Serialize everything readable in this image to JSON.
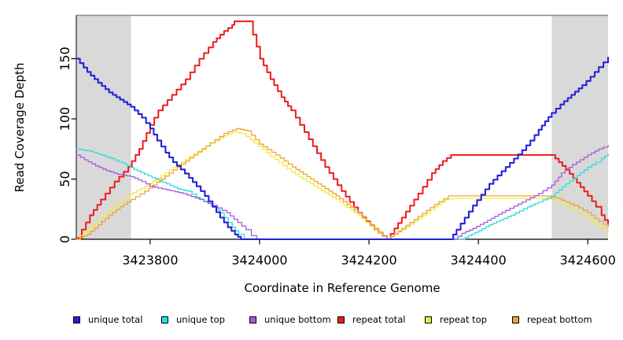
{
  "figure": {
    "xlabel": "Coordinate in Reference Genome",
    "ylabel": "Read Coverage Depth"
  },
  "chart_data": {
    "type": "line",
    "title": "",
    "xlabel": "Coordinate in Reference Genome",
    "ylabel": "Read Coverage Depth",
    "xlim": [
      3423665,
      3424637
    ],
    "ylim": [
      0,
      186
    ],
    "x_ticks": [
      3423800,
      3424000,
      3424200,
      3424400,
      3424600
    ],
    "y_ticks": [
      0,
      50,
      100,
      150
    ],
    "grid": false,
    "legend_position": "bottom",
    "background_color": "#ffffff",
    "shaded_region_color": "#d9d9d9",
    "top_border_color": "#8a8a8a",
    "shaded_regions": [
      {
        "x0": 3423665,
        "x1": 3423765
      },
      {
        "x0": 3424534,
        "x1": 3424637
      }
    ],
    "series": [
      {
        "name": "unique total",
        "color": "#2323d6",
        "line_width": 2.1,
        "points": [
          [
            3423665,
            150
          ],
          [
            3423685,
            139
          ],
          [
            3423705,
            130
          ],
          [
            3423725,
            122
          ],
          [
            3423745,
            116
          ],
          [
            3423765,
            110
          ],
          [
            3423785,
            101
          ],
          [
            3423800,
            92
          ],
          [
            3423813,
            82
          ],
          [
            3423828,
            72
          ],
          [
            3423842,
            64
          ],
          [
            3423856,
            58
          ],
          [
            3423871,
            51
          ],
          [
            3423885,
            44
          ],
          [
            3423900,
            36
          ],
          [
            3423914,
            27
          ],
          [
            3423928,
            18
          ],
          [
            3423942,
            10
          ],
          [
            3423955,
            4
          ],
          [
            3423966,
            0
          ],
          [
            3424348,
            0
          ],
          [
            3424360,
            8
          ],
          [
            3424375,
            18
          ],
          [
            3424390,
            28
          ],
          [
            3424405,
            37
          ],
          [
            3424420,
            46
          ],
          [
            3424435,
            53
          ],
          [
            3424450,
            60
          ],
          [
            3424465,
            67
          ],
          [
            3424480,
            74
          ],
          [
            3424495,
            82
          ],
          [
            3424510,
            91
          ],
          [
            3424522,
            98
          ],
          [
            3424534,
            105
          ],
          [
            3424550,
            112
          ],
          [
            3424570,
            120
          ],
          [
            3424590,
            128
          ],
          [
            3424605,
            135
          ],
          [
            3424620,
            143
          ],
          [
            3424637,
            151
          ]
        ]
      },
      {
        "name": "unique top",
        "color": "#2adfdf",
        "line_width": 1.3,
        "points": [
          [
            3423665,
            75
          ],
          [
            3423690,
            73
          ],
          [
            3423710,
            70
          ],
          [
            3423730,
            67
          ],
          [
            3423750,
            63
          ],
          [
            3423770,
            58
          ],
          [
            3423790,
            54
          ],
          [
            3423810,
            50
          ],
          [
            3423830,
            46
          ],
          [
            3423850,
            42
          ],
          [
            3423868,
            40
          ],
          [
            3423885,
            35
          ],
          [
            3423905,
            30
          ],
          [
            3423928,
            22
          ],
          [
            3423950,
            10
          ],
          [
            3423962,
            4
          ],
          [
            3423972,
            0
          ],
          [
            3424370,
            0
          ],
          [
            3424382,
            3
          ],
          [
            3424400,
            7
          ],
          [
            3424420,
            12
          ],
          [
            3424440,
            16
          ],
          [
            3424460,
            20
          ],
          [
            3424490,
            27
          ],
          [
            3424510,
            31
          ],
          [
            3424534,
            36
          ],
          [
            3424560,
            46
          ],
          [
            3424580,
            53
          ],
          [
            3424600,
            60
          ],
          [
            3424615,
            64
          ],
          [
            3424625,
            67
          ],
          [
            3424637,
            71
          ]
        ]
      },
      {
        "name": "unique bottom",
        "color": "#a55ae0",
        "line_width": 1.3,
        "points": [
          [
            3423665,
            70
          ],
          [
            3423680,
            66
          ],
          [
            3423700,
            61
          ],
          [
            3423720,
            57
          ],
          [
            3423740,
            54
          ],
          [
            3423765,
            52
          ],
          [
            3423785,
            48
          ],
          [
            3423800,
            44
          ],
          [
            3423830,
            41
          ],
          [
            3423860,
            38
          ],
          [
            3423890,
            33
          ],
          [
            3423915,
            28
          ],
          [
            3423940,
            22
          ],
          [
            3423960,
            14
          ],
          [
            3423975,
            8
          ],
          [
            3423985,
            3
          ],
          [
            3423995,
            0
          ],
          [
            3424355,
            0
          ],
          [
            3424370,
            5
          ],
          [
            3424390,
            9
          ],
          [
            3424410,
            14
          ],
          [
            3424430,
            19
          ],
          [
            3424450,
            24
          ],
          [
            3424480,
            31
          ],
          [
            3424510,
            38
          ],
          [
            3424534,
            45
          ],
          [
            3424552,
            55
          ],
          [
            3424572,
            62
          ],
          [
            3424600,
            70
          ],
          [
            3424620,
            75
          ],
          [
            3424637,
            78
          ]
        ]
      },
      {
        "name": "repeat total",
        "color": "#ec1c1c",
        "line_width": 2.0,
        "points": [
          [
            3423665,
            1
          ],
          [
            3423675,
            8
          ],
          [
            3423690,
            20
          ],
          [
            3423710,
            33
          ],
          [
            3423735,
            48
          ],
          [
            3423760,
            60
          ],
          [
            3423780,
            75
          ],
          [
            3423800,
            95
          ],
          [
            3423815,
            107
          ],
          [
            3423840,
            120
          ],
          [
            3423865,
            133
          ],
          [
            3423890,
            150
          ],
          [
            3423915,
            164
          ],
          [
            3423935,
            173
          ],
          [
            3423950,
            178
          ],
          [
            3423954,
            181
          ],
          [
            3423978,
            181
          ],
          [
            3423988,
            170
          ],
          [
            3424001,
            150
          ],
          [
            3424020,
            133
          ],
          [
            3424040,
            118
          ],
          [
            3424058,
            107
          ],
          [
            3424090,
            83
          ],
          [
            3424120,
            60
          ],
          [
            3424150,
            40
          ],
          [
            3424180,
            22
          ],
          [
            3424210,
            8
          ],
          [
            3424233,
            0
          ],
          [
            3424260,
            18
          ],
          [
            3424290,
            38
          ],
          [
            3424315,
            55
          ],
          [
            3424335,
            65
          ],
          [
            3424350,
            70
          ],
          [
            3424534,
            70
          ],
          [
            3424560,
            58
          ],
          [
            3424580,
            47
          ],
          [
            3424600,
            36
          ],
          [
            3424615,
            27
          ],
          [
            3424625,
            20
          ],
          [
            3424637,
            12
          ]
        ]
      },
      {
        "name": "repeat top",
        "color": "#f1ea3c",
        "line_width": 1.3,
        "points": [
          [
            3423665,
            0
          ],
          [
            3423680,
            6
          ],
          [
            3423700,
            14
          ],
          [
            3423720,
            22
          ],
          [
            3423740,
            30
          ],
          [
            3423761,
            37
          ],
          [
            3423790,
            44
          ],
          [
            3423820,
            53
          ],
          [
            3423850,
            62
          ],
          [
            3423880,
            71
          ],
          [
            3423910,
            80
          ],
          [
            3423935,
            86
          ],
          [
            3423950,
            89
          ],
          [
            3423968,
            88
          ],
          [
            3423990,
            80
          ],
          [
            3424020,
            69
          ],
          [
            3424058,
            56
          ],
          [
            3424100,
            44
          ],
          [
            3424140,
            33
          ],
          [
            3424180,
            20
          ],
          [
            3424210,
            8
          ],
          [
            3424233,
            0
          ],
          [
            3424260,
            8
          ],
          [
            3424290,
            17
          ],
          [
            3424320,
            27
          ],
          [
            3424340,
            33
          ],
          [
            3424360,
            34
          ],
          [
            3424515,
            34
          ],
          [
            3424534,
            33
          ],
          [
            3424560,
            28
          ],
          [
            3424590,
            20
          ],
          [
            3424610,
            14
          ],
          [
            3424625,
            9
          ],
          [
            3424637,
            6
          ]
        ]
      },
      {
        "name": "repeat bottom",
        "color": "#f0a236",
        "line_width": 1.3,
        "points": [
          [
            3423665,
            0
          ],
          [
            3423685,
            4
          ],
          [
            3423705,
            12
          ],
          [
            3423725,
            20
          ],
          [
            3423745,
            27
          ],
          [
            3423765,
            33
          ],
          [
            3423790,
            40
          ],
          [
            3423820,
            50
          ],
          [
            3423850,
            60
          ],
          [
            3423880,
            70
          ],
          [
            3423910,
            80
          ],
          [
            3423935,
            88
          ],
          [
            3423958,
            92
          ],
          [
            3423978,
            90
          ],
          [
            3424000,
            79
          ],
          [
            3424030,
            70
          ],
          [
            3424060,
            60
          ],
          [
            3424100,
            48
          ],
          [
            3424140,
            36
          ],
          [
            3424180,
            22
          ],
          [
            3424210,
            9
          ],
          [
            3424233,
            0
          ],
          [
            3424260,
            9
          ],
          [
            3424290,
            19
          ],
          [
            3424320,
            29
          ],
          [
            3424345,
            36
          ],
          [
            3424525,
            36
          ],
          [
            3424545,
            34
          ],
          [
            3424575,
            28
          ],
          [
            3424600,
            22
          ],
          [
            3424620,
            15
          ],
          [
            3424637,
            10
          ]
        ]
      }
    ]
  }
}
